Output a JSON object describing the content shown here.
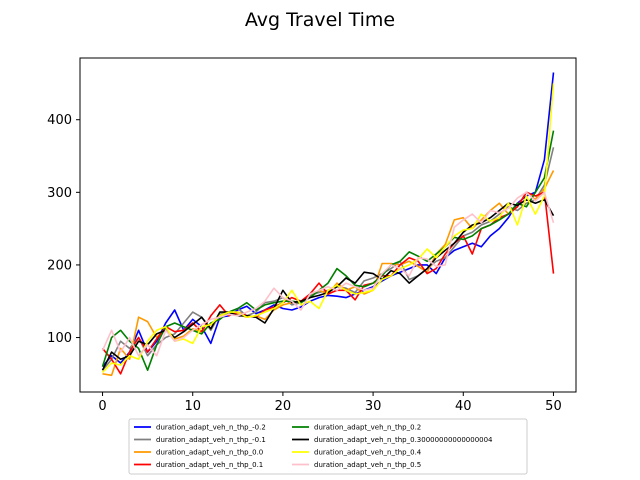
{
  "chart_data": {
    "type": "line",
    "title": "Avg Travel Time",
    "xlabel": "",
    "ylabel": "",
    "xlim": [
      -2.5,
      52.5
    ],
    "ylim": [
      25,
      485
    ],
    "x_ticks": [
      0,
      10,
      20,
      30,
      40,
      50
    ],
    "y_ticks": [
      100,
      200,
      300,
      400
    ],
    "grid": false,
    "legend_placement": "lower-center, below axes, 2 columns",
    "x": [
      0,
      1,
      2,
      3,
      4,
      5,
      6,
      7,
      8,
      9,
      10,
      11,
      12,
      13,
      14,
      15,
      16,
      17,
      18,
      19,
      20,
      21,
      22,
      23,
      24,
      25,
      26,
      27,
      28,
      29,
      30,
      31,
      32,
      33,
      34,
      35,
      36,
      37,
      38,
      39,
      40,
      41,
      42,
      43,
      44,
      45,
      46,
      47,
      48,
      49,
      50
    ],
    "series": [
      {
        "name": "duration_adapt_veh_n_thp_-0.2",
        "color": "#0000ff",
        "values": [
          60,
          75,
          65,
          80,
          110,
          80,
          95,
          120,
          138,
          110,
          125,
          115,
          92,
          128,
          130,
          138,
          143,
          133,
          138,
          145,
          140,
          138,
          142,
          150,
          155,
          158,
          157,
          155,
          160,
          165,
          170,
          178,
          185,
          190,
          195,
          200,
          200,
          188,
          210,
          220,
          225,
          230,
          225,
          240,
          250,
          265,
          285,
          295,
          300,
          345,
          465
        ]
      },
      {
        "name": "duration_adapt_veh_n_thp_-0.1",
        "color": "#808080",
        "values": [
          55,
          70,
          95,
          85,
          100,
          75,
          90,
          100,
          105,
          120,
          135,
          128,
          110,
          132,
          135,
          140,
          130,
          135,
          148,
          150,
          155,
          145,
          148,
          158,
          162,
          165,
          170,
          168,
          162,
          178,
          182,
          188,
          195,
          205,
          180,
          185,
          195,
          205,
          210,
          225,
          240,
          245,
          255,
          260,
          270,
          280,
          275,
          285,
          290,
          310,
          362
        ]
      },
      {
        "name": "duration_adapt_veh_n_thp_0.0",
        "color": "#ff9900",
        "values": [
          50,
          48,
          85,
          70,
          128,
          122,
          100,
          112,
          98,
          102,
          112,
          108,
          118,
          130,
          135,
          132,
          128,
          130,
          125,
          138,
          145,
          148,
          150,
          155,
          165,
          160,
          175,
          165,
          170,
          160,
          165,
          202,
          202,
          200,
          205,
          198,
          190,
          215,
          228,
          262,
          265,
          250,
          262,
          275,
          285,
          270,
          280,
          300,
          290,
          305,
          330
        ]
      },
      {
        "name": "duration_adapt_veh_n_thp_0.1",
        "color": "#ff0000",
        "values": [
          85,
          70,
          50,
          80,
          100,
          80,
          98,
          115,
          108,
          110,
          120,
          108,
          130,
          145,
          130,
          135,
          130,
          128,
          138,
          142,
          148,
          155,
          150,
          160,
          175,
          160,
          165,
          165,
          152,
          172,
          175,
          185,
          185,
          200,
          210,
          205,
          188,
          195,
          215,
          230,
          240,
          215,
          250,
          255,
          265,
          270,
          280,
          300,
          295,
          300,
          188
        ]
      },
      {
        "name": "duration_adapt_veh_n_thp_0.2",
        "color": "#008000",
        "values": [
          60,
          100,
          110,
          95,
          85,
          55,
          90,
          115,
          120,
          115,
          110,
          105,
          120,
          125,
          135,
          140,
          148,
          138,
          145,
          148,
          150,
          150,
          148,
          155,
          165,
          175,
          195,
          185,
          172,
          170,
          175,
          185,
          200,
          205,
          218,
          212,
          205,
          215,
          225,
          238,
          235,
          240,
          250,
          255,
          262,
          270,
          285,
          280,
          300,
          320,
          385
        ]
      },
      {
        "name": "duration_adapt_veh_n_thp_0.30000000000000004",
        "color": "#000000",
        "values": [
          55,
          80,
          70,
          75,
          95,
          90,
          105,
          110,
          100,
          108,
          118,
          128,
          112,
          135,
          135,
          130,
          130,
          128,
          120,
          140,
          165,
          148,
          150,
          155,
          158,
          162,
          170,
          182,
          175,
          190,
          188,
          180,
          192,
          188,
          175,
          185,
          195,
          210,
          220,
          230,
          245,
          255,
          258,
          265,
          275,
          285,
          282,
          290,
          285,
          290,
          268
        ]
      },
      {
        "name": "duration_adapt_veh_n_thp_0.4",
        "color": "#ffff00",
        "values": [
          52,
          65,
          62,
          75,
          70,
          95,
          110,
          115,
          95,
          98,
          92,
          115,
          118,
          130,
          135,
          135,
          128,
          130,
          135,
          140,
          148,
          165,
          145,
          150,
          140,
          165,
          172,
          165,
          160,
          162,
          165,
          180,
          185,
          195,
          200,
          208,
          222,
          210,
          225,
          240,
          248,
          250,
          270,
          260,
          265,
          285,
          255,
          295,
          270,
          295,
          450
        ]
      },
      {
        "name": "duration_adapt_veh_n_thp_0.5",
        "color": "#ffc0cb",
        "values": [
          82,
          110,
          80,
          100,
          75,
          90,
          75,
          110,
          95,
          100,
          110,
          118,
          125,
          128,
          132,
          130,
          135,
          140,
          150,
          168,
          155,
          150,
          138,
          160,
          165,
          170,
          165,
          175,
          170,
          165,
          168,
          188,
          200,
          195,
          185,
          210,
          208,
          198,
          200,
          252,
          262,
          270,
          258,
          275,
          272,
          278,
          292,
          300,
          288,
          300,
          258
        ]
      }
    ]
  }
}
